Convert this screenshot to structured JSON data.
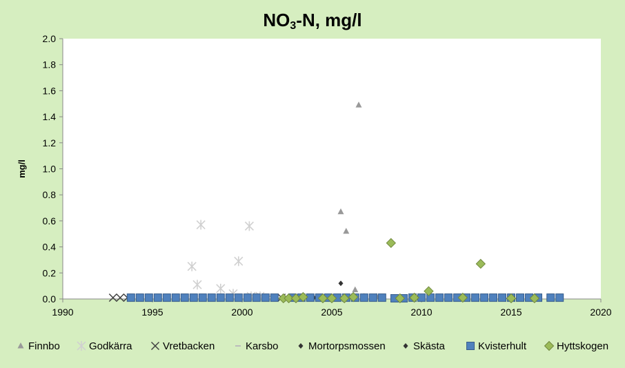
{
  "chart_data": {
    "type": "scatter",
    "title_main": "NO",
    "title_sub": "3",
    "title_rest": "-N, mg/l",
    "ylabel": "mg/l",
    "xlim": [
      1990,
      2020
    ],
    "ylim": [
      0,
      2.0
    ],
    "x_ticks": [
      "1990",
      "1995",
      "2000",
      "2005",
      "2010",
      "2015",
      "2020"
    ],
    "y_ticks": [
      "0.0",
      "0.2",
      "0.4",
      "0.6",
      "0.8",
      "1.0",
      "1.2",
      "1.4",
      "1.6",
      "1.8",
      "2.0"
    ],
    "legend_position": "bottom",
    "grid": false,
    "series": [
      {
        "name": "Finnbo",
        "marker": "triangle",
        "color": "#999999",
        "points": [
          [
            2005.5,
            0.67
          ],
          [
            2005.8,
            0.52
          ],
          [
            2006.5,
            1.49
          ],
          [
            2006.3,
            0.07
          ],
          [
            2006.8,
            0.02
          ],
          [
            2007.5,
            0.02
          ],
          [
            2005.2,
            0.01
          ]
        ]
      },
      {
        "name": "Godkärra",
        "marker": "asterisk",
        "color": "#d0d0d0",
        "points": [
          [
            1997.7,
            0.57
          ],
          [
            2000.4,
            0.56
          ],
          [
            1997.2,
            0.25
          ],
          [
            1999.8,
            0.29
          ],
          [
            1997.5,
            0.11
          ],
          [
            1998.8,
            0.08
          ],
          [
            1999.5,
            0.04
          ],
          [
            2000.5,
            0.02
          ],
          [
            2001.0,
            0.02
          ]
        ]
      },
      {
        "name": "Vretbacken",
        "marker": "x",
        "color": "#404040",
        "points": [
          [
            1992.8,
            0.01
          ],
          [
            1993.2,
            0.01
          ],
          [
            1993.6,
            0.01
          ],
          [
            2002.2,
            0.01
          ]
        ]
      },
      {
        "name": "Karsbo",
        "marker": "dash",
        "color": "#bbbbbb",
        "points": [
          [
            2001.5,
            0.02
          ],
          [
            2003.5,
            0.02
          ],
          [
            2008.5,
            0.02
          ]
        ]
      },
      {
        "name": "Mortorpsmossen",
        "marker": "diamond-small",
        "color": "#333333",
        "points": [
          [
            1997.8,
            0.01
          ],
          [
            2001.8,
            0.01
          ],
          [
            2004.0,
            0.01
          ],
          [
            2007.2,
            0.01
          ]
        ]
      },
      {
        "name": "Skästa",
        "marker": "diamond-small",
        "color": "#333333",
        "points": [
          [
            2005.5,
            0.12
          ],
          [
            2005.3,
            0.01
          ]
        ]
      },
      {
        "name": "Kvisterhult",
        "marker": "square",
        "color": "#4f81bd",
        "points": [
          [
            1993.8,
            0.01
          ],
          [
            1994.3,
            0.01
          ],
          [
            1994.8,
            0.01
          ],
          [
            1995.3,
            0.01
          ],
          [
            1995.8,
            0.01
          ],
          [
            1996.3,
            0.01
          ],
          [
            1996.8,
            0.01
          ],
          [
            1997.3,
            0.01
          ],
          [
            1997.8,
            0.01
          ],
          [
            1998.3,
            0.01
          ],
          [
            1998.8,
            0.01
          ],
          [
            1999.3,
            0.01
          ],
          [
            1999.8,
            0.01
          ],
          [
            2000.3,
            0.01
          ],
          [
            2000.8,
            0.01
          ],
          [
            2001.3,
            0.01
          ],
          [
            2001.8,
            0.01
          ],
          [
            2002.8,
            0.01
          ],
          [
            2003.3,
            0.01
          ],
          [
            2003.8,
            0.01
          ],
          [
            2004.3,
            0.01
          ],
          [
            2004.8,
            0.01
          ],
          [
            2005.3,
            0.01
          ],
          [
            2005.8,
            0.01
          ],
          [
            2006.3,
            0.01
          ],
          [
            2006.8,
            0.01
          ],
          [
            2007.3,
            0.01
          ],
          [
            2007.8,
            0.01
          ],
          [
            2008.5,
            0.005
          ],
          [
            2009.0,
            0.005
          ],
          [
            2009.5,
            0.01
          ],
          [
            2010.0,
            0.01
          ],
          [
            2010.5,
            0.01
          ],
          [
            2011.0,
            0.01
          ],
          [
            2011.5,
            0.01
          ],
          [
            2012.0,
            0.01
          ],
          [
            2012.5,
            0.01
          ],
          [
            2013.0,
            0.01
          ],
          [
            2013.5,
            0.01
          ],
          [
            2014.0,
            0.01
          ],
          [
            2014.5,
            0.01
          ],
          [
            2015.0,
            0.01
          ],
          [
            2015.5,
            0.01
          ],
          [
            2016.0,
            0.01
          ],
          [
            2016.5,
            0.01
          ],
          [
            2017.2,
            0.01
          ],
          [
            2017.7,
            0.01
          ]
        ]
      },
      {
        "name": "Hyttskogen",
        "marker": "diamond",
        "color": "#9bbb59",
        "points": [
          [
            2008.3,
            0.43
          ],
          [
            2013.3,
            0.27
          ],
          [
            2010.4,
            0.06
          ],
          [
            2002.3,
            0.005
          ],
          [
            2002.6,
            0.005
          ],
          [
            2003.0,
            0.005
          ],
          [
            2003.4,
            0.015
          ],
          [
            2004.5,
            0.005
          ],
          [
            2005.0,
            0.005
          ],
          [
            2005.7,
            0.005
          ],
          [
            2006.2,
            0.015
          ],
          [
            2008.8,
            0.005
          ],
          [
            2009.6,
            0.01
          ],
          [
            2012.3,
            0.01
          ],
          [
            2015.0,
            0.005
          ],
          [
            2016.3,
            0.005
          ]
        ]
      }
    ]
  }
}
